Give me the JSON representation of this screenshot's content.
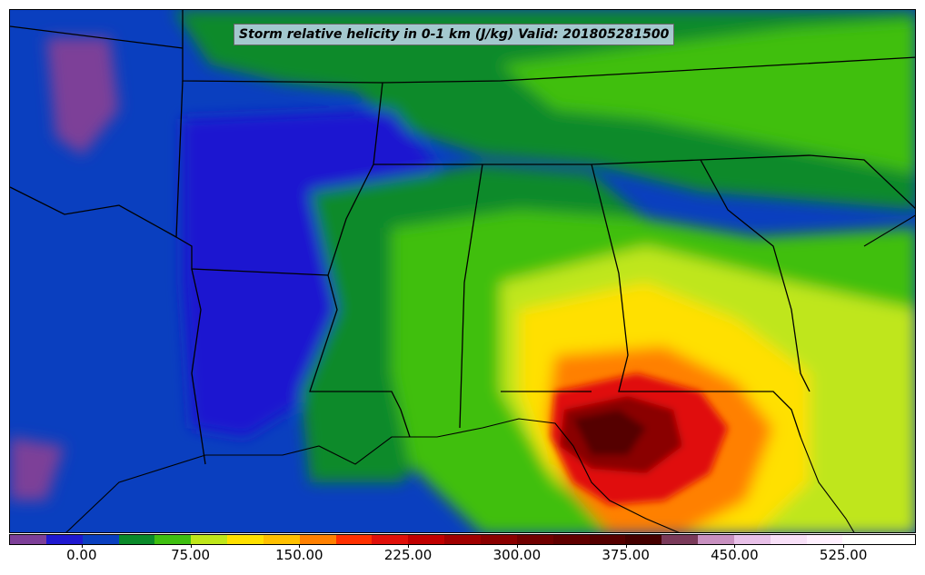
{
  "map": {
    "title": "Storm relative helicity in 0-1 km (J/kg) Valid: 201805281500",
    "colors": {
      "purple": "#7d3f98",
      "blue_dark": "#1f18d0",
      "blue": "#0a3fbf",
      "green_dark": "#0a8a2a",
      "green": "#3fbf10",
      "yellow_green": "#bfe61a",
      "yellow": "#ffe000",
      "orange": "#ff8000",
      "red": "#e0100a",
      "dark_red": "#8a0000",
      "maroon": "#550000"
    }
  },
  "colorbar": {
    "colors": [
      "#7d3f98",
      "#1f18d0",
      "#0a3fbf",
      "#0a8a2a",
      "#3fbf10",
      "#bfe61a",
      "#ffe000",
      "#ffc000",
      "#ff8000",
      "#ff3000",
      "#e0100a",
      "#c00000",
      "#a00000",
      "#8a0000",
      "#700000",
      "#600000",
      "#550000",
      "#450000",
      "#7a3a5a",
      "#c890c0",
      "#e8c0e8",
      "#f8e0f8",
      "#fff0ff",
      "#ffffff",
      "#ffffff"
    ],
    "ticks": [
      {
        "label": "0.00",
        "frac": 0.08
      },
      {
        "label": "75.00",
        "frac": 0.2
      },
      {
        "label": "150.00",
        "frac": 0.32
      },
      {
        "label": "225.00",
        "frac": 0.44
      },
      {
        "label": "300.00",
        "frac": 0.56
      },
      {
        "label": "375.00",
        "frac": 0.68
      },
      {
        "label": "450.00",
        "frac": 0.8
      },
      {
        "label": "525.00",
        "frac": 0.92
      }
    ]
  }
}
